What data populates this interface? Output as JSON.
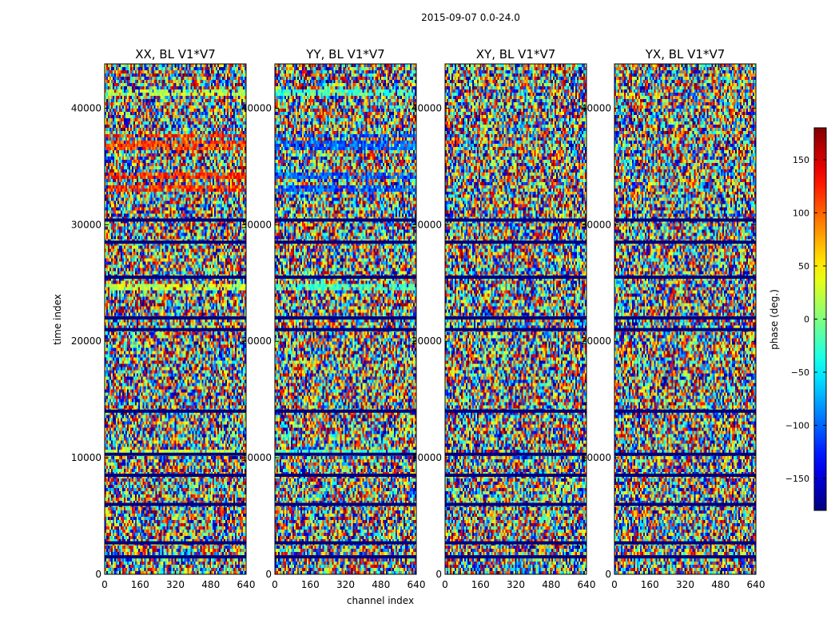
{
  "figure": {
    "suptitle": "2015-09-07 0.0-24.0",
    "xlabel": "channel index",
    "ylabel": "time index"
  },
  "chart_data": {
    "type": "heatmap",
    "x_range": [
      0,
      640
    ],
    "y_range": [
      0,
      43800
    ],
    "xticks": [
      0,
      160,
      320,
      480,
      640
    ],
    "yticks": [
      0,
      10000,
      20000,
      30000,
      40000
    ],
    "panels": [
      {
        "title": "XX, BL V1*V7",
        "pol": "XX"
      },
      {
        "title": "YY, BL V1*V7",
        "pol": "YY"
      },
      {
        "title": "XY, BL V1*V7",
        "pol": "XY"
      },
      {
        "title": "YX, BL V1*V7",
        "pol": "YX"
      }
    ],
    "colorbar": {
      "label": "phase (deg.)",
      "range": [
        -180,
        180
      ],
      "ticks": [
        -150,
        -100,
        -50,
        0,
        50,
        100,
        150
      ],
      "tick_labels": [
        "−150",
        "−100",
        "−50",
        "0",
        "50",
        "100",
        "150"
      ],
      "colormap": "jet"
    },
    "flagged_time_bands": [
      30400,
      28500,
      25500,
      22000,
      21000,
      14000,
      10300,
      8500,
      6000,
      2700,
      1500
    ],
    "xx_bias_bands": [
      {
        "t0": 41000,
        "t1": 41500,
        "phase": 20
      },
      {
        "t0": 37400,
        "t1": 37900,
        "phase": 120
      },
      {
        "t0": 36500,
        "t1": 37100,
        "phase": 110
      },
      {
        "t0": 33900,
        "t1": 34400,
        "phase": 115
      },
      {
        "t0": 32900,
        "t1": 33500,
        "phase": 120
      },
      {
        "t0": 24500,
        "t1": 25000,
        "phase": 25
      },
      {
        "t0": 10000,
        "t1": 10600,
        "phase": 20
      }
    ]
  }
}
